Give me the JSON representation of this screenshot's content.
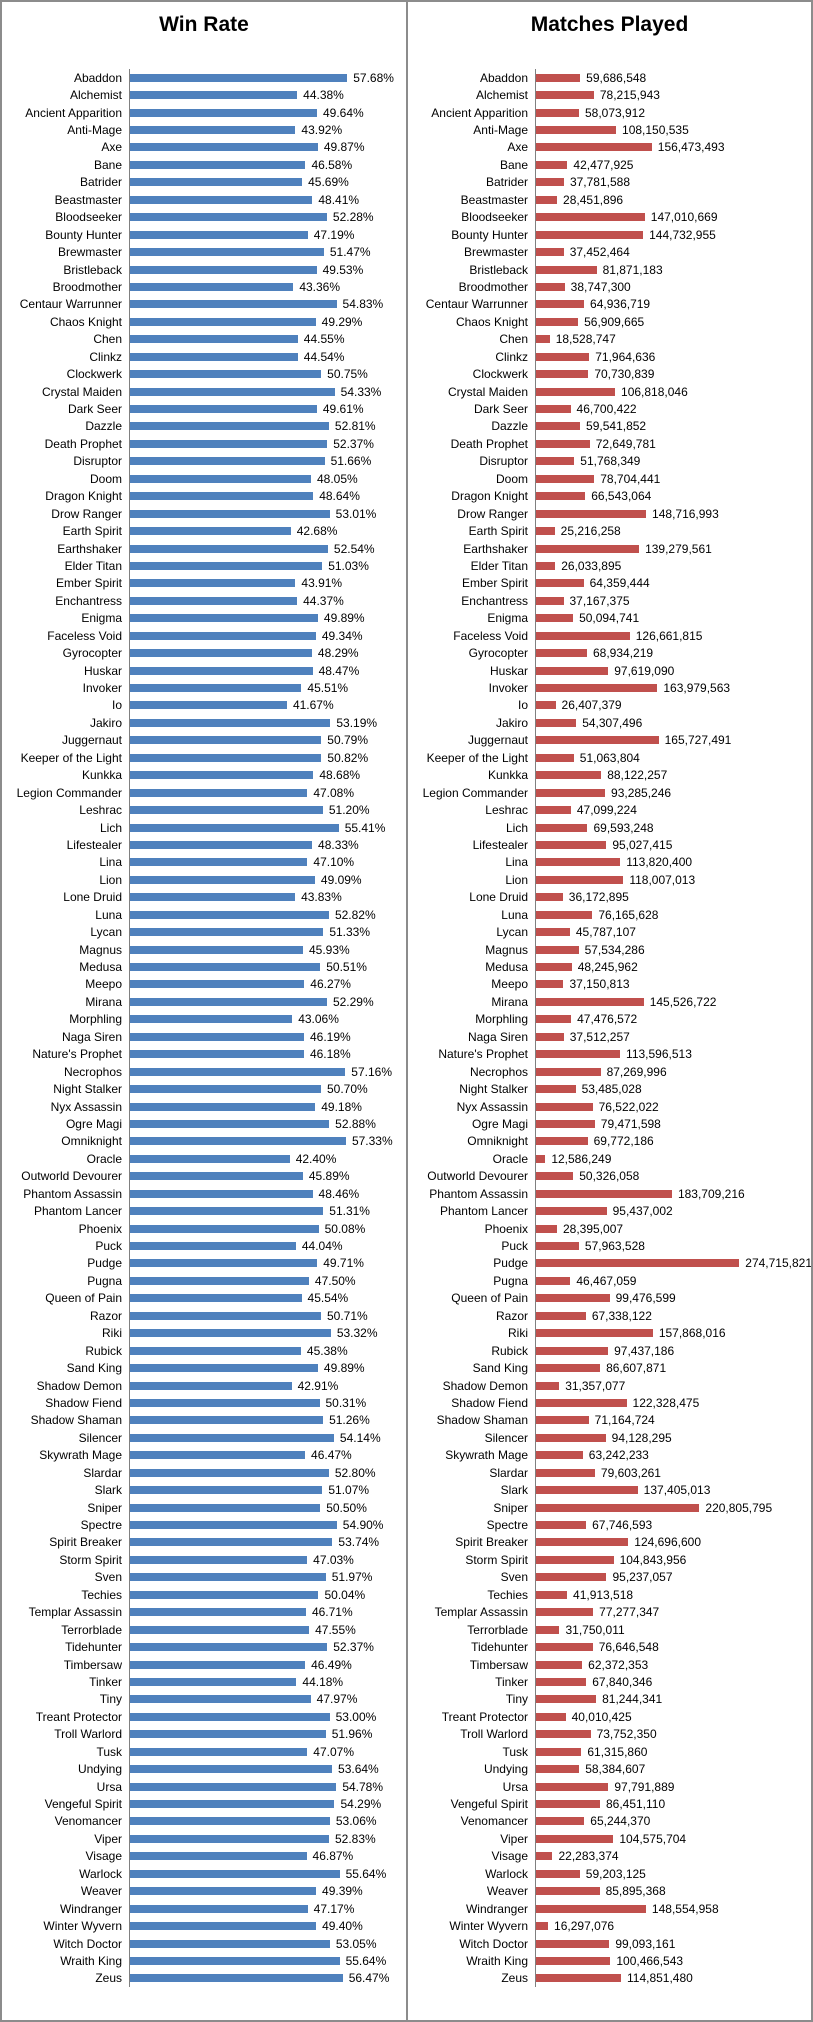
{
  "chart_data": [
    {
      "type": "bar",
      "orientation": "horizontal",
      "title": "Win Rate",
      "bar_color": "#4F81BD",
      "axis_color": "#808080",
      "grid": false,
      "legend": false,
      "data_labels": true,
      "value_format": "percent",
      "xlim": [
        0,
        60
      ],
      "categories": [
        "Abaddon",
        "Alchemist",
        "Ancient Apparition",
        "Anti-Mage",
        "Axe",
        "Bane",
        "Batrider",
        "Beastmaster",
        "Bloodseeker",
        "Bounty Hunter",
        "Brewmaster",
        "Bristleback",
        "Broodmother",
        "Centaur Warrunner",
        "Chaos Knight",
        "Chen",
        "Clinkz",
        "Clockwerk",
        "Crystal Maiden",
        "Dark Seer",
        "Dazzle",
        "Death Prophet",
        "Disruptor",
        "Doom",
        "Dragon Knight",
        "Drow Ranger",
        "Earth Spirit",
        "Earthshaker",
        "Elder Titan",
        "Ember Spirit",
        "Enchantress",
        "Enigma",
        "Faceless Void",
        "Gyrocopter",
        "Huskar",
        "Invoker",
        "Io",
        "Jakiro",
        "Juggernaut",
        "Keeper of the Light",
        "Kunkka",
        "Legion Commander",
        "Leshrac",
        "Lich",
        "Lifestealer",
        "Lina",
        "Lion",
        "Lone Druid",
        "Luna",
        "Lycan",
        "Magnus",
        "Medusa",
        "Meepo",
        "Mirana",
        "Morphling",
        "Naga Siren",
        "Nature's Prophet",
        "Necrophos",
        "Night Stalker",
        "Nyx Assassin",
        "Ogre Magi",
        "Omniknight",
        "Oracle",
        "Outworld Devourer",
        "Phantom Assassin",
        "Phantom Lancer",
        "Phoenix",
        "Puck",
        "Pudge",
        "Pugna",
        "Queen of Pain",
        "Razor",
        "Riki",
        "Rubick",
        "Sand King",
        "Shadow Demon",
        "Shadow Fiend",
        "Shadow Shaman",
        "Silencer",
        "Skywrath Mage",
        "Slardar",
        "Slark",
        "Sniper",
        "Spectre",
        "Spirit Breaker",
        "Storm Spirit",
        "Sven",
        "Techies",
        "Templar Assassin",
        "Terrorblade",
        "Tidehunter",
        "Timbersaw",
        "Tinker",
        "Tiny",
        "Treant Protector",
        "Troll Warlord",
        "Tusk",
        "Undying",
        "Ursa",
        "Vengeful Spirit",
        "Venomancer",
        "Viper",
        "Visage",
        "Warlock",
        "Weaver",
        "Windranger",
        "Winter Wyvern",
        "Witch Doctor",
        "Wraith King",
        "Zeus"
      ],
      "values": [
        57.68,
        44.38,
        49.64,
        43.92,
        49.87,
        46.58,
        45.69,
        48.41,
        52.28,
        47.19,
        51.47,
        49.53,
        43.36,
        54.83,
        49.29,
        44.55,
        44.54,
        50.75,
        54.33,
        49.61,
        52.81,
        52.37,
        51.66,
        48.05,
        48.64,
        53.01,
        42.68,
        52.54,
        51.03,
        43.91,
        44.37,
        49.89,
        49.34,
        48.29,
        48.47,
        45.51,
        41.67,
        53.19,
        50.79,
        50.82,
        48.68,
        47.08,
        51.2,
        55.41,
        48.33,
        47.1,
        49.09,
        43.83,
        52.82,
        51.33,
        45.93,
        50.51,
        46.27,
        52.29,
        43.06,
        46.19,
        46.18,
        57.16,
        50.7,
        49.18,
        52.88,
        57.33,
        42.4,
        45.89,
        48.46,
        51.31,
        50.08,
        44.04,
        49.71,
        47.5,
        45.54,
        50.71,
        53.32,
        45.38,
        49.89,
        42.91,
        50.31,
        51.26,
        54.14,
        46.47,
        52.8,
        51.07,
        50.5,
        54.9,
        53.74,
        47.03,
        51.97,
        50.04,
        46.71,
        47.55,
        52.37,
        46.49,
        44.18,
        47.97,
        53.0,
        51.96,
        47.07,
        53.64,
        54.78,
        54.29,
        53.06,
        52.83,
        46.87,
        55.64,
        49.39,
        47.17,
        49.4,
        53.05,
        55.64,
        56.47
      ]
    },
    {
      "type": "bar",
      "orientation": "horizontal",
      "title": "Matches Played",
      "bar_color": "#C0504D",
      "axis_color": "#808080",
      "grid": false,
      "legend": false,
      "data_labels": true,
      "value_format": "thousands",
      "xlim": [
        0,
        300000000
      ],
      "categories": [
        "Abaddon",
        "Alchemist",
        "Ancient Apparition",
        "Anti-Mage",
        "Axe",
        "Bane",
        "Batrider",
        "Beastmaster",
        "Bloodseeker",
        "Bounty Hunter",
        "Brewmaster",
        "Bristleback",
        "Broodmother",
        "Centaur Warrunner",
        "Chaos Knight",
        "Chen",
        "Clinkz",
        "Clockwerk",
        "Crystal Maiden",
        "Dark Seer",
        "Dazzle",
        "Death Prophet",
        "Disruptor",
        "Doom",
        "Dragon Knight",
        "Drow Ranger",
        "Earth Spirit",
        "Earthshaker",
        "Elder Titan",
        "Ember Spirit",
        "Enchantress",
        "Enigma",
        "Faceless Void",
        "Gyrocopter",
        "Huskar",
        "Invoker",
        "Io",
        "Jakiro",
        "Juggernaut",
        "Keeper of the Light",
        "Kunkka",
        "Legion Commander",
        "Leshrac",
        "Lich",
        "Lifestealer",
        "Lina",
        "Lion",
        "Lone Druid",
        "Luna",
        "Lycan",
        "Magnus",
        "Medusa",
        "Meepo",
        "Mirana",
        "Morphling",
        "Naga Siren",
        "Nature's Prophet",
        "Necrophos",
        "Night Stalker",
        "Nyx Assassin",
        "Ogre Magi",
        "Omniknight",
        "Oracle",
        "Outworld Devourer",
        "Phantom Assassin",
        "Phantom Lancer",
        "Phoenix",
        "Puck",
        "Pudge",
        "Pugna",
        "Queen of Pain",
        "Razor",
        "Riki",
        "Rubick",
        "Sand King",
        "Shadow Demon",
        "Shadow Fiend",
        "Shadow Shaman",
        "Silencer",
        "Skywrath Mage",
        "Slardar",
        "Slark",
        "Sniper",
        "Spectre",
        "Spirit Breaker",
        "Storm Spirit",
        "Sven",
        "Techies",
        "Templar Assassin",
        "Terrorblade",
        "Tidehunter",
        "Timbersaw",
        "Tinker",
        "Tiny",
        "Treant Protector",
        "Troll Warlord",
        "Tusk",
        "Undying",
        "Ursa",
        "Vengeful Spirit",
        "Venomancer",
        "Viper",
        "Visage",
        "Warlock",
        "Weaver",
        "Windranger",
        "Winter Wyvern",
        "Witch Doctor",
        "Wraith King",
        "Zeus"
      ],
      "values": [
        59686548,
        78215943,
        58073912,
        108150535,
        156473493,
        42477925,
        37781588,
        28451896,
        147010669,
        144732955,
        37452464,
        81871183,
        38747300,
        64936719,
        56909665,
        18528747,
        71964636,
        70730839,
        106818046,
        46700422,
        59541852,
        72649781,
        51768349,
        78704441,
        66543064,
        148716993,
        25216258,
        139279561,
        26033895,
        64359444,
        37167375,
        50094741,
        126661815,
        68934219,
        97619090,
        163979563,
        26407379,
        54307496,
        165727491,
        51063804,
        88122257,
        93285246,
        47099224,
        69593248,
        95027415,
        113820400,
        118007013,
        36172895,
        76165628,
        45787107,
        57534286,
        48245962,
        37150813,
        145526722,
        47476572,
        37512257,
        113596513,
        87269996,
        53485028,
        76522022,
        79471598,
        69772186,
        12586249,
        50326058,
        183709216,
        95437002,
        28395007,
        57963528,
        274715821,
        46467059,
        99476599,
        67338122,
        157868016,
        97437186,
        86607871,
        31357077,
        122328475,
        71164724,
        94128295,
        63242233,
        79603261,
        137405013,
        220805795,
        67746593,
        124696600,
        104843956,
        95237057,
        41913518,
        77277347,
        31750011,
        76646548,
        62372353,
        67840346,
        81244341,
        40010425,
        73752350,
        61315860,
        58384607,
        97791889,
        86451110,
        65244370,
        104575704,
        22283374,
        59203125,
        85895368,
        148554958,
        16297076,
        99093161,
        100466543,
        114851480
      ]
    }
  ]
}
